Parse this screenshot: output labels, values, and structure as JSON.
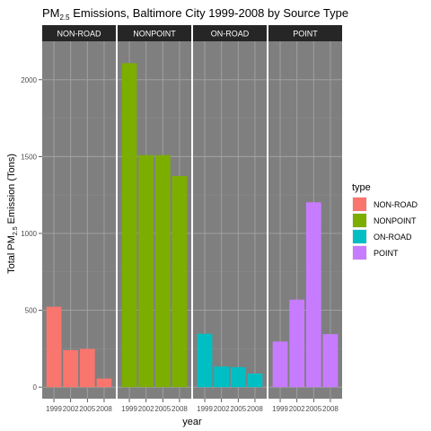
{
  "chart_data": {
    "type": "bar",
    "title": {
      "main": "PM",
      "sub": "2.5",
      "rest": " Emissions, Baltimore City 1999-2008 by Source Type"
    },
    "xlabel": "year",
    "ylabel": {
      "pre": "Total PM",
      "sub": "2.5",
      "post": " Emission (Tons)"
    },
    "categories": [
      "1999",
      "2002",
      "2005",
      "2008"
    ],
    "ylim": [
      -75,
      2250
    ],
    "yticks": [
      0,
      500,
      1000,
      1500,
      2000
    ],
    "panels": [
      {
        "name": "NON-ROAD",
        "color": "#F8766D",
        "values": [
          522.94,
          240.85,
          248.93,
          55.82
        ]
      },
      {
        "name": "NONPOINT",
        "color": "#7CAE00",
        "values": [
          2107.63,
          1509.5,
          1509.5,
          1373.21
        ]
      },
      {
        "name": "ON-ROAD",
        "color": "#00BFC4",
        "values": [
          346.82,
          134.31,
          130.43,
          88.28
        ]
      },
      {
        "name": "POINT",
        "color": "#C77CFF",
        "values": [
          296.8,
          569.26,
          1202.49,
          344.98
        ]
      }
    ],
    "legend": {
      "title": "type",
      "position": "right",
      "entries": [
        "NON-ROAD",
        "NONPOINT",
        "ON-ROAD",
        "POINT"
      ]
    },
    "grid": true,
    "panel_background": "#7f7f7f",
    "strip_background": "#262626"
  }
}
